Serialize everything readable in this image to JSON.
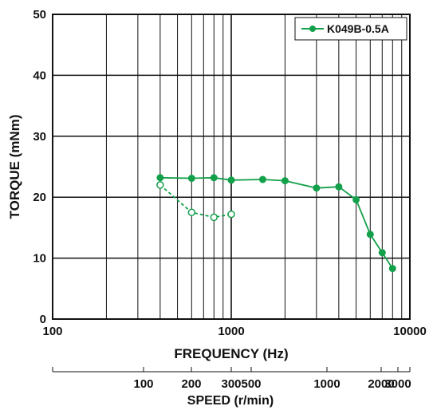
{
  "chart_data": {
    "type": "line",
    "xlabel": "FREQUENCY (Hz)",
    "ylabel": "TORQUE (mNm)",
    "x_scale": "log",
    "xlim": [
      100,
      10000
    ],
    "ylim": [
      0,
      50
    ],
    "grid": true,
    "x_ticks": [
      {
        "value": 100,
        "label": "100"
      },
      {
        "value": 1000,
        "label": "1000"
      },
      {
        "value": 10000,
        "label": "10000"
      }
    ],
    "y_ticks": [
      {
        "value": 0,
        "label": "0"
      },
      {
        "value": 10,
        "label": "10"
      },
      {
        "value": 20,
        "label": "20"
      },
      {
        "value": 30,
        "label": "30"
      },
      {
        "value": 40,
        "label": "40"
      },
      {
        "value": 50,
        "label": "50"
      }
    ],
    "legend_position": "top-right",
    "series": [
      {
        "name": "K049B-0.5A",
        "style": "solid",
        "marker": "filled-circle",
        "color": "#13a04a",
        "x": [
          400,
          600,
          800,
          1000,
          1500,
          2000,
          3000,
          4000,
          5000,
          6000,
          7000,
          8000
        ],
        "y": [
          23.2,
          23.1,
          23.2,
          22.8,
          22.9,
          22.7,
          21.5,
          21.7,
          19.6,
          13.9,
          10.9,
          8.3
        ]
      },
      {
        "style": "dashed",
        "marker": "open-circle",
        "color": "#13a04a",
        "x": [
          400,
          600,
          800,
          1000
        ],
        "y": [
          22.0,
          17.5,
          16.7,
          17.2
        ]
      }
    ],
    "secondary_axis": {
      "label": "SPEED (r/min)",
      "ticks": [
        {
          "value": 100,
          "label": "100"
        },
        {
          "value": 200,
          "label": "200"
        },
        {
          "value": 300,
          "label": "300"
        },
        {
          "value": 500,
          "label": "500"
        },
        {
          "value": 1000,
          "label": "1000"
        },
        {
          "value": 2000,
          "label": "2000"
        },
        {
          "value": 3000,
          "label": "3000"
        }
      ]
    }
  }
}
